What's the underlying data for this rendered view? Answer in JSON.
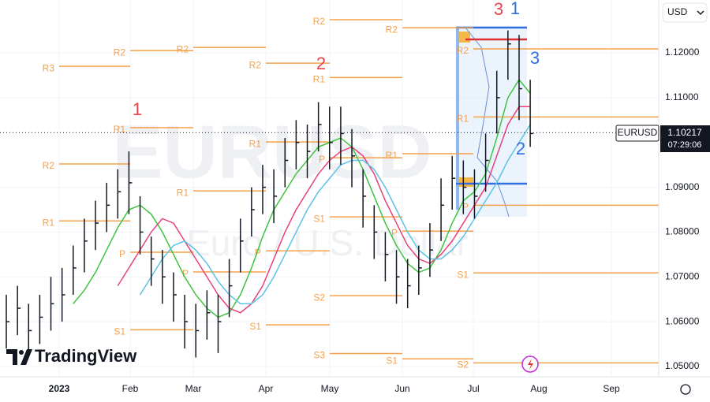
{
  "chart_data": {
    "type": "ohlc",
    "watermark": "EURUSD",
    "watermark_sub": "Euro / U.S. Dollar",
    "currency": "USD",
    "brand": "TradingView",
    "symbol": "EURUSD",
    "last_price": 1.10217,
    "countdown": "07:29:06",
    "x_labels": [
      "2023",
      "Feb",
      "Mar",
      "Apr",
      "May",
      "Jun",
      "Jul",
      "Aug",
      "Sep"
    ],
    "ylim": [
      1.0477,
      1.1318
    ],
    "yticks": [
      {
        "value": 1.12,
        "label": "1.12000"
      },
      {
        "value": 1.11,
        "label": "1.11000"
      },
      {
        "value": 1.09,
        "label": "1.09000"
      },
      {
        "value": 1.08,
        "label": "1.08000"
      },
      {
        "value": 1.07,
        "label": "1.07000"
      },
      {
        "value": 1.06,
        "label": "1.06000"
      },
      {
        "value": 1.05,
        "label": "1.05000"
      }
    ],
    "grid": true,
    "bar_color": "#131722",
    "high": [
      1.066,
      1.068,
      1.064,
      1.066,
      1.07,
      1.072,
      1.077,
      1.083,
      1.087,
      1.091,
      1.094,
      1.098,
      1.088,
      1.079,
      1.076,
      1.071,
      1.066,
      1.064,
      1.067,
      1.066,
      1.074,
      1.083,
      1.09,
      1.095,
      1.094,
      1.101,
      1.105,
      1.104,
      1.109,
      1.108,
      1.108,
      1.103,
      1.094,
      1.086,
      1.08,
      1.076,
      1.074,
      1.077,
      1.082,
      1.092,
      1.097,
      1.096,
      1.094,
      1.102,
      1.116,
      1.125,
      1.124,
      1.114
    ],
    "low": [
      1.054,
      1.057,
      1.052,
      1.055,
      1.058,
      1.06,
      1.066,
      1.071,
      1.076,
      1.08,
      1.083,
      1.084,
      1.075,
      1.068,
      1.064,
      1.06,
      1.054,
      1.052,
      1.056,
      1.053,
      1.061,
      1.071,
      1.079,
      1.084,
      1.082,
      1.09,
      1.094,
      1.092,
      1.098,
      1.094,
      1.095,
      1.09,
      1.081,
      1.074,
      1.069,
      1.064,
      1.063,
      1.066,
      1.07,
      1.078,
      1.085,
      1.084,
      1.083,
      1.089,
      1.102,
      1.114,
      1.105,
      1.099
    ],
    "close": [
      1.06,
      1.063,
      1.058,
      1.061,
      1.064,
      1.066,
      1.072,
      1.078,
      1.082,
      1.086,
      1.089,
      1.091,
      1.08,
      1.074,
      1.07,
      1.066,
      1.06,
      1.058,
      1.062,
      1.06,
      1.068,
      1.078,
      1.085,
      1.09,
      1.088,
      1.096,
      1.1,
      1.098,
      1.104,
      1.1,
      1.102,
      1.097,
      1.088,
      1.08,
      1.075,
      1.07,
      1.068,
      1.072,
      1.076,
      1.086,
      1.092,
      1.09,
      1.088,
      1.096,
      1.11,
      1.122,
      1.112,
      1.102
    ],
    "series": [
      {
        "color": "#3ec43e",
        "values": [
          null,
          null,
          null,
          null,
          null,
          null,
          1.064,
          1.067,
          1.071,
          1.076,
          1.081,
          1.085,
          1.086,
          1.084,
          1.08,
          1.075,
          1.07,
          1.066,
          1.063,
          1.061,
          1.062,
          1.066,
          1.072,
          1.079,
          1.085,
          1.089,
          1.093,
          1.096,
          1.099,
          1.1,
          1.101,
          1.099,
          1.094,
          1.088,
          1.082,
          1.077,
          1.073,
          1.071,
          1.072,
          1.076,
          1.082,
          1.087,
          1.089,
          1.093,
          1.101,
          1.11,
          1.114,
          1.111
        ]
      },
      {
        "color": "#e8407a",
        "values": [
          null,
          null,
          null,
          null,
          null,
          null,
          null,
          null,
          null,
          null,
          1.068,
          1.072,
          1.076,
          1.08,
          1.083,
          1.082,
          1.078,
          1.074,
          1.07,
          1.066,
          1.063,
          1.062,
          1.064,
          1.068,
          1.074,
          1.08,
          1.085,
          1.089,
          1.093,
          1.096,
          1.098,
          1.099,
          1.097,
          1.093,
          1.087,
          1.082,
          1.077,
          1.074,
          1.073,
          1.075,
          1.078,
          1.082,
          1.086,
          1.09,
          1.097,
          1.104,
          1.108,
          1.108
        ]
      },
      {
        "color": "#5bc2e7",
        "values": [
          null,
          null,
          null,
          null,
          null,
          null,
          null,
          null,
          null,
          null,
          null,
          null,
          1.066,
          1.07,
          1.074,
          1.077,
          1.078,
          1.076,
          1.073,
          1.069,
          1.066,
          1.064,
          1.064,
          1.066,
          1.07,
          1.075,
          1.08,
          1.085,
          1.089,
          1.092,
          1.095,
          1.096,
          1.096,
          1.094,
          1.09,
          1.085,
          1.08,
          1.076,
          1.074,
          1.074,
          1.076,
          1.079,
          1.083,
          1.087,
          1.091,
          1.096,
          1.1,
          1.104
        ]
      }
    ],
    "pivot_color": "#f5a04a",
    "pivots": [
      [
        {
          "label": "R3",
          "value": 1.117
        },
        {
          "label": "R2",
          "value": 1.0952
        },
        {
          "label": "R1",
          "value": 1.0825
        }
      ],
      [
        {
          "label": "R2",
          "value": 1.1205
        },
        {
          "label": "R1",
          "value": 1.1033
        },
        {
          "label": "P",
          "value": 1.0755
        },
        {
          "label": "S1",
          "value": 1.0582
        }
      ],
      [
        {
          "label": "R2",
          "value": 1.1212
        },
        {
          "label": "R1",
          "value": 1.0892
        },
        {
          "label": "P",
          "value": 1.0711
        }
      ],
      [
        {
          "label": "R2",
          "value": 1.1177
        },
        {
          "label": "R1",
          "value": 1.1001
        },
        {
          "label": "P",
          "value": 1.0758
        },
        {
          "label": "S1",
          "value": 1.0593
        }
      ],
      [
        {
          "label": "R2",
          "value": 1.1274
        },
        {
          "label": "R1",
          "value": 1.1145
        },
        {
          "label": "P",
          "value": 1.0966
        },
        {
          "label": "S1",
          "value": 1.0834
        },
        {
          "label": "S2",
          "value": 1.0658
        },
        {
          "label": "S3",
          "value": 1.0529
        }
      ],
      [
        {
          "label": "R2",
          "value": 1.1256
        },
        {
          "label": "R1",
          "value": 1.0975
        },
        {
          "label": "P",
          "value": 1.0802
        },
        {
          "label": "S1",
          "value": 1.0517
        }
      ],
      [
        {
          "label": "R2",
          "value": 1.1209
        },
        {
          "label": "R1",
          "value": 1.1057
        },
        {
          "label": "P",
          "value": 1.086
        },
        {
          "label": "S1",
          "value": 1.0709
        },
        {
          "label": "S2",
          "value": 1.0508
        }
      ]
    ],
    "annotations": [
      {
        "text": "1",
        "color": "#e8424f"
      },
      {
        "text": "2",
        "color": "#e8424f"
      },
      {
        "text": "3",
        "color": "#e8424f"
      },
      {
        "text": "1",
        "color": "#2f6fe0"
      },
      {
        "text": "3",
        "color": "#2f6fe0"
      },
      {
        "text": "2",
        "color": "#2f6fe0"
      }
    ]
  }
}
